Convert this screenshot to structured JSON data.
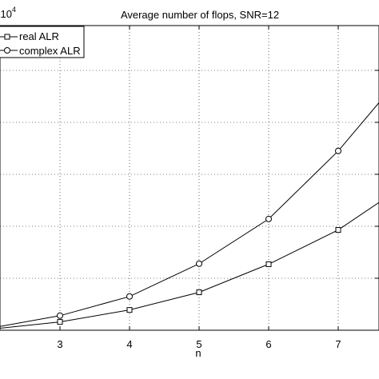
{
  "chart_data": {
    "type": "line",
    "title": "Average number of flops, SNR=12",
    "xlabel": "n",
    "ylabel": "",
    "exponent_label_base": "x10",
    "exponent_label_power": "4",
    "xlim": [
      2.0,
      7.6
    ],
    "ylim": [
      0,
      6.3
    ],
    "xticks": [
      3,
      4,
      5,
      6,
      7
    ],
    "grid": true,
    "legend_position": "top-left",
    "series": [
      {
        "name": "real ALR",
        "marker": "square",
        "x": [
          2,
          3,
          4,
          5,
          6,
          7,
          7.6
        ],
        "y": [
          0.02,
          0.16,
          0.39,
          0.73,
          1.27,
          1.93,
          2.47
        ]
      },
      {
        "name": "complex ALR",
        "marker": "circle",
        "x": [
          2,
          3,
          4,
          5,
          6,
          7,
          7.6
        ],
        "y": [
          0.04,
          0.28,
          0.65,
          1.28,
          2.14,
          3.45,
          4.4
        ]
      }
    ]
  }
}
